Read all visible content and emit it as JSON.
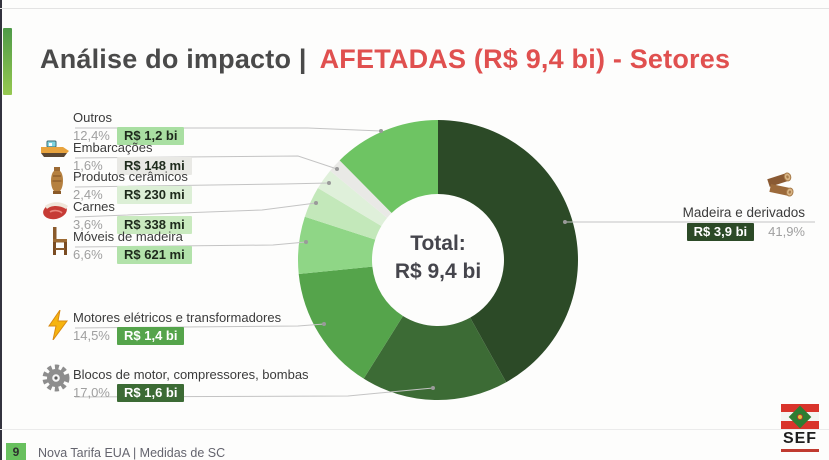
{
  "header": {
    "title_left": "Análise do impacto |",
    "title_right": "AFETADAS (R$ 9,4 bi) - Setores"
  },
  "chart_data": {
    "type": "pie",
    "subtype": "donut",
    "title": "AFETADAS (R$ 9,4 bi) - Setores",
    "center_label": "Total:",
    "center_value": "R$ 9,4 bi",
    "legend_position": "labels-with-leader-lines",
    "sectors": [
      {
        "label": "Madeira e derivados",
        "percent": "41,9%",
        "percent_num": 41.9,
        "value": "R$ 3,9 bi",
        "color": "#2c4a27",
        "badge_bg": "#2c4a27",
        "badge_text": "#ffffff",
        "icon": "wood-logs-icon"
      },
      {
        "label": "Blocos de motor, compressores, bombas",
        "percent": "17,0%",
        "percent_num": 17.0,
        "value": "R$ 1,6 bi",
        "color": "#3c6b35",
        "badge_bg": "#3c6b35",
        "badge_text": "#ffffff",
        "icon": "gear-icon"
      },
      {
        "label": "Motores elétricos e transformadores",
        "percent": "14,5%",
        "percent_num": 14.5,
        "value": "R$ 1,4 bi",
        "color": "#55a44b",
        "badge_bg": "#55a44b",
        "badge_text": "#ffffff",
        "icon": "lightning-icon"
      },
      {
        "label": "Móveis de madeira",
        "percent": "6,6%",
        "percent_num": 6.6,
        "value": "R$ 621 mi",
        "color": "#8fd686",
        "badge_bg": "#b2e2aa",
        "badge_text": "#1e2a1c",
        "icon": "chair-icon"
      },
      {
        "label": "Carnes",
        "percent": "3,6%",
        "percent_num": 3.6,
        "value": "R$ 338 mi",
        "color": "#c3e8ba",
        "badge_bg": "#c9eabf",
        "badge_text": "#1e2a1c",
        "icon": "meat-icon"
      },
      {
        "label": "Produtos cerâmicos",
        "percent": "2,4%",
        "percent_num": 2.4,
        "value": "R$ 230 mi",
        "color": "#dff0da",
        "badge_bg": "#dcefd6",
        "badge_text": "#1e2a1c",
        "icon": "vase-icon"
      },
      {
        "label": "Embarcações",
        "percent": "1,6%",
        "percent_num": 1.6,
        "value": "R$ 148 mi",
        "color": "#e9e9e6",
        "badge_bg": "#e9e9e5",
        "badge_text": "#1e2a1c",
        "icon": "boat-icon"
      },
      {
        "label": "Outros",
        "percent": "12,4%",
        "percent_num": 12.4,
        "value": "R$ 1,2 bi",
        "color": "#6ec463",
        "badge_bg": "#a9dfa2",
        "badge_text": "#1e2a1c",
        "icon": null
      }
    ]
  },
  "footer": {
    "page_number": "9",
    "text": "Nova Tarifa EUA | Medidas de SC",
    "logo_text": "SEF"
  },
  "colors": {
    "title_red": "#e0504f",
    "title_dark": "#4a4a4a",
    "accent_bar_top": "#4e9a48",
    "accent_bar_bottom": "#96c850",
    "page_badge_green": "#68c05e",
    "flag_red": "#d9342b",
    "flag_green": "#2e7d32"
  }
}
